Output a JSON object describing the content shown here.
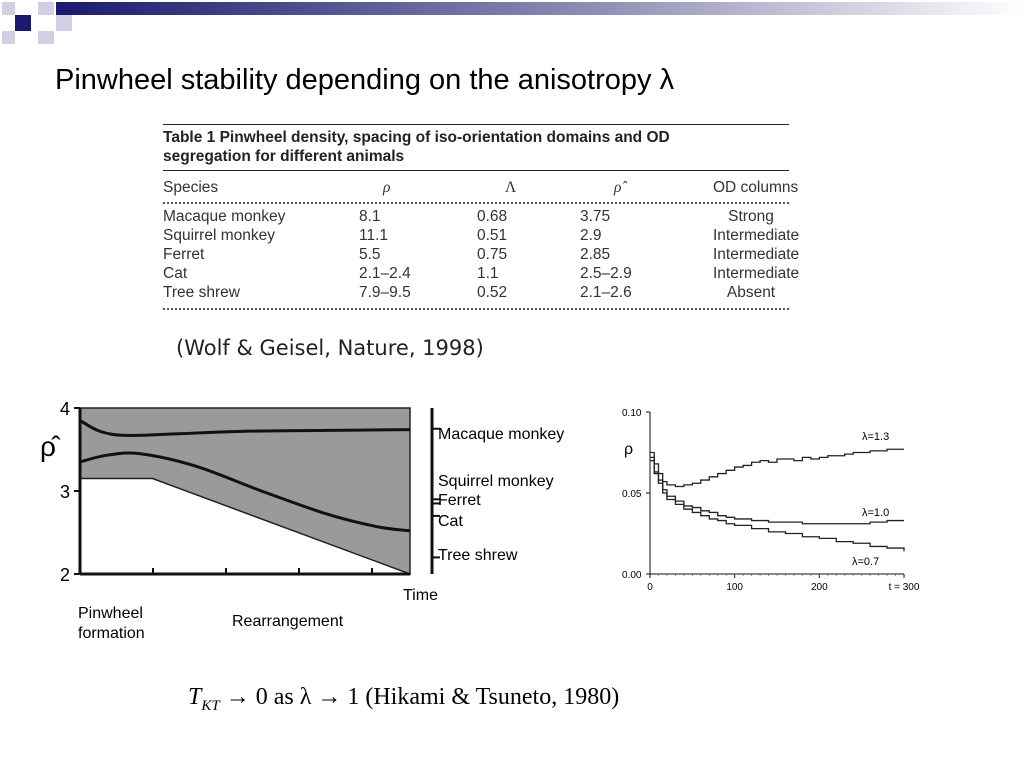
{
  "slide": {
    "title": "Pinwheel stability depending on the anisotropy λ"
  },
  "table": {
    "caption_line1": "Table 1 Pinwheel density, spacing of iso-orientation domains and OD",
    "caption_line2": "segregation for different animals",
    "headers": [
      "Species",
      "ρ",
      "Λ",
      "ρ̂",
      "OD columns"
    ],
    "rows": [
      [
        "Macaque monkey",
        "8.1",
        "0.68",
        "3.75",
        "Strong"
      ],
      [
        "Squirrel monkey",
        "11.1",
        "0.51",
        "2.9",
        "Intermediate"
      ],
      [
        "Ferret",
        "5.5",
        "0.75",
        "2.85",
        "Intermediate"
      ],
      [
        "Cat",
        "2.1–2.4",
        "1.1",
        "2.5–2.9",
        "Intermediate"
      ],
      [
        "Tree shrew",
        "7.9–9.5",
        "0.52",
        "2.1–2.6",
        "Absent"
      ]
    ]
  },
  "citation": "(Wolf & Geisel, Nature, 1998)",
  "chart_data": [
    {
      "type": "area",
      "ylabel": "ρ̂",
      "xlabel": "Time",
      "ylim": [
        2,
        4
      ],
      "y_ticks": [
        "4",
        "3",
        "2"
      ],
      "x_annotations": [
        "Pinwheel",
        "formation",
        "Rearrangement"
      ],
      "species_ticks": [
        {
          "name": "Macaque monkey",
          "value": 3.75
        },
        {
          "name": "Squirrel monkey",
          "value": 2.9
        },
        {
          "name": "Ferret",
          "value": 2.85
        },
        {
          "name": "Cat",
          "value": 2.7
        },
        {
          "name": "Tree shrew",
          "value": 2.2
        }
      ],
      "band_upper": [
        [
          0,
          4.0
        ],
        [
          1,
          4.0
        ]
      ],
      "band_lower": [
        [
          0,
          3.15
        ],
        [
          0.22,
          3.15
        ],
        [
          1,
          2.0
        ]
      ],
      "curve_upper": [
        [
          0,
          3.85
        ],
        [
          0.06,
          3.72
        ],
        [
          0.14,
          3.67
        ],
        [
          0.3,
          3.69
        ],
        [
          0.5,
          3.72
        ],
        [
          0.75,
          3.73
        ],
        [
          1,
          3.74
        ]
      ],
      "curve_lower": [
        [
          0,
          3.35
        ],
        [
          0.08,
          3.43
        ],
        [
          0.18,
          3.45
        ],
        [
          0.35,
          3.3
        ],
        [
          0.55,
          3.0
        ],
        [
          0.75,
          2.72
        ],
        [
          0.9,
          2.57
        ],
        [
          1,
          2.52
        ]
      ]
    },
    {
      "type": "line",
      "ylabel": "ρ",
      "xlabel": "",
      "ylim": [
        0,
        0.1
      ],
      "xlim": [
        0,
        300
      ],
      "y_ticks": [
        "0.00",
        "0.05",
        "0.10"
      ],
      "x_ticks": [
        "0",
        "100",
        "200",
        "t = 300"
      ],
      "series": [
        {
          "name": "λ=1.3",
          "points": [
            [
              0,
              0.075
            ],
            [
              5,
              0.068
            ],
            [
              10,
              0.062
            ],
            [
              15,
              0.057
            ],
            [
              20,
              0.055
            ],
            [
              30,
              0.054
            ],
            [
              40,
              0.055
            ],
            [
              50,
              0.056
            ],
            [
              60,
              0.058
            ],
            [
              70,
              0.06
            ],
            [
              80,
              0.062
            ],
            [
              90,
              0.064
            ],
            [
              100,
              0.066
            ],
            [
              110,
              0.067
            ],
            [
              120,
              0.069
            ],
            [
              130,
              0.07
            ],
            [
              140,
              0.069
            ],
            [
              150,
              0.071
            ],
            [
              160,
              0.071
            ],
            [
              170,
              0.07
            ],
            [
              180,
              0.072
            ],
            [
              190,
              0.071
            ],
            [
              200,
              0.072
            ],
            [
              210,
              0.073
            ],
            [
              220,
              0.073
            ],
            [
              230,
              0.074
            ],
            [
              240,
              0.075
            ],
            [
              260,
              0.076
            ],
            [
              280,
              0.077
            ],
            [
              300,
              0.077
            ]
          ]
        },
        {
          "name": "λ=1.0",
          "points": [
            [
              0,
              0.07
            ],
            [
              5,
              0.063
            ],
            [
              10,
              0.058
            ],
            [
              15,
              0.052
            ],
            [
              20,
              0.048
            ],
            [
              30,
              0.045
            ],
            [
              40,
              0.042
            ],
            [
              50,
              0.041
            ],
            [
              60,
              0.039
            ],
            [
              70,
              0.038
            ],
            [
              80,
              0.036
            ],
            [
              90,
              0.035
            ],
            [
              100,
              0.034
            ],
            [
              120,
              0.033
            ],
            [
              140,
              0.032
            ],
            [
              160,
              0.032
            ],
            [
              180,
              0.031
            ],
            [
              200,
              0.031
            ],
            [
              220,
              0.031
            ],
            [
              240,
              0.031
            ],
            [
              260,
              0.032
            ],
            [
              280,
              0.033
            ],
            [
              300,
              0.033
            ]
          ]
        },
        {
          "name": "λ=0.7",
          "points": [
            [
              0,
              0.072
            ],
            [
              5,
              0.062
            ],
            [
              10,
              0.056
            ],
            [
              15,
              0.05
            ],
            [
              20,
              0.046
            ],
            [
              30,
              0.043
            ],
            [
              40,
              0.04
            ],
            [
              50,
              0.038
            ],
            [
              60,
              0.036
            ],
            [
              70,
              0.034
            ],
            [
              80,
              0.033
            ],
            [
              90,
              0.031
            ],
            [
              100,
              0.03
            ],
            [
              120,
              0.028
            ],
            [
              140,
              0.026
            ],
            [
              160,
              0.025
            ],
            [
              180,
              0.023
            ],
            [
              200,
              0.022
            ],
            [
              220,
              0.02
            ],
            [
              240,
              0.019
            ],
            [
              260,
              0.017
            ],
            [
              280,
              0.016
            ],
            [
              300,
              0.014
            ]
          ]
        }
      ]
    }
  ],
  "formula": {
    "T": "T",
    "sub": "KT",
    "text": " → 0  as  λ → 1    (Hikami & Tsuneto, 1980)"
  },
  "colors": {
    "navy": "#1a1a6e",
    "band_fill": "#9a9a9a"
  }
}
